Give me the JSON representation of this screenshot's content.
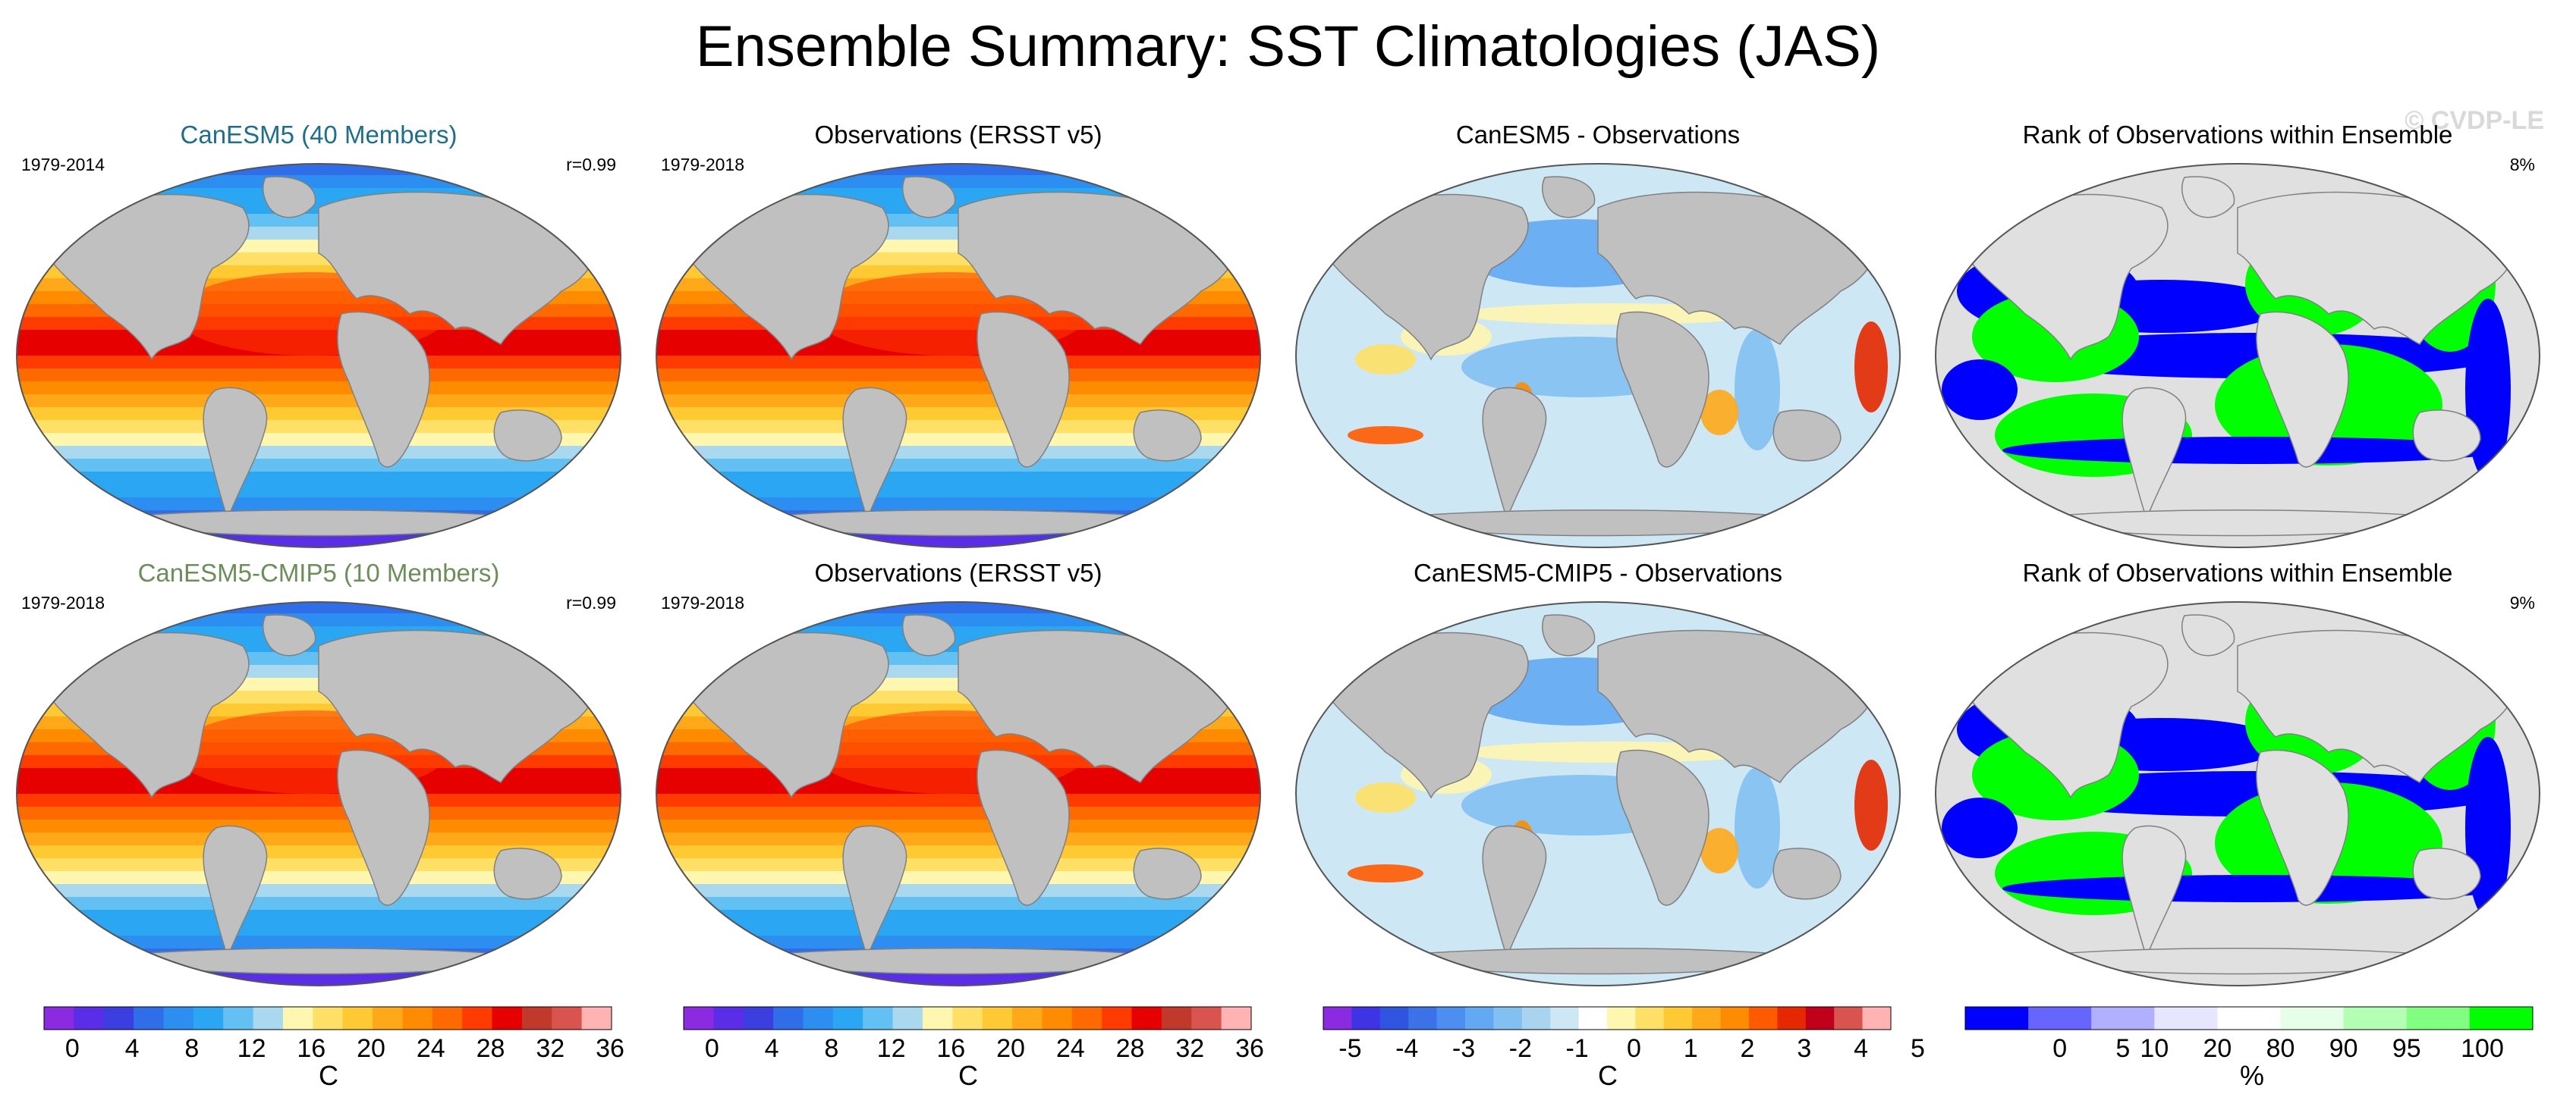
{
  "title": "Ensemble Summary: SST Climatologies (JAS)",
  "watermark": "© CVDP-LE",
  "colors": {
    "land": "#c0c0c0",
    "land_light": "#e0e0e0",
    "ocean_edge": "#555555",
    "model_title_1": "#1f6e8c",
    "model_title_2": "#6b8e5a"
  },
  "panels": [
    {
      "id": "p11",
      "title": "CanESM5 (40 Members)",
      "title_color": "#1f6e8c",
      "left": "1979-2014",
      "right": "r=0.99",
      "kind": "sst"
    },
    {
      "id": "p12",
      "title": "Observations (ERSST v5)",
      "title_color": "#000000",
      "left": "1979-2018",
      "right": "",
      "kind": "sst"
    },
    {
      "id": "p13",
      "title": "CanESM5 - Observations",
      "title_color": "#000000",
      "left": "",
      "right": "",
      "kind": "diff"
    },
    {
      "id": "p14",
      "title": "Rank of Observations within Ensemble",
      "title_color": "#000000",
      "left": "",
      "right": "8%",
      "kind": "rank"
    },
    {
      "id": "p21",
      "title": "CanESM5-CMIP5 (10 Members)",
      "title_color": "#6b8e5a",
      "left": "1979-2018",
      "right": "r=0.99",
      "kind": "sst"
    },
    {
      "id": "p22",
      "title": "Observations (ERSST v5)",
      "title_color": "#000000",
      "left": "1979-2018",
      "right": "",
      "kind": "sst"
    },
    {
      "id": "p23",
      "title": "CanESM5-CMIP5 - Observations",
      "title_color": "#000000",
      "left": "",
      "right": "",
      "kind": "diff"
    },
    {
      "id": "p24",
      "title": "Rank of Observations within Ensemble",
      "title_color": "#000000",
      "left": "",
      "right": "9%",
      "kind": "rank"
    }
  ],
  "colorbars": [
    {
      "id": "cb1",
      "unit": "C",
      "colors": [
        "#8a2be2",
        "#5a2ee6",
        "#3b3fe0",
        "#2f6ee8",
        "#2b8ef0",
        "#2aa6f2",
        "#62c1f2",
        "#a9d8ef",
        "#fff6b0",
        "#ffe066",
        "#ffc933",
        "#ffa81a",
        "#ff8c00",
        "#ff6a00",
        "#ff3b00",
        "#e60000",
        "#c0392b",
        "#d9534f",
        "#ffb3b3"
      ],
      "labels": [
        "0",
        "4",
        "8",
        "12",
        "16",
        "20",
        "24",
        "28",
        "32",
        "36"
      ]
    },
    {
      "id": "cb2",
      "unit": "C",
      "colors": [
        "#8a2be2",
        "#5a2ee6",
        "#3b3fe0",
        "#2f6ee8",
        "#2b8ef0",
        "#2aa6f2",
        "#62c1f2",
        "#a9d8ef",
        "#fff6b0",
        "#ffe066",
        "#ffc933",
        "#ffa81a",
        "#ff8c00",
        "#ff6a00",
        "#ff3b00",
        "#e60000",
        "#c0392b",
        "#d9534f",
        "#ffb3b3"
      ],
      "labels": [
        "0",
        "4",
        "8",
        "12",
        "16",
        "20",
        "24",
        "28",
        "32",
        "36"
      ]
    },
    {
      "id": "cb3",
      "unit": "C",
      "colors": [
        "#8a2be2",
        "#3f33e6",
        "#2f55e0",
        "#3b72e8",
        "#4d8ff0",
        "#62a8f2",
        "#83c0f2",
        "#a9d4f0",
        "#cde7f5",
        "#ffffff",
        "#fff6b0",
        "#ffe066",
        "#ffc933",
        "#ffa81a",
        "#ff8c00",
        "#ff5a00",
        "#e62800",
        "#c0001a",
        "#d9534f",
        "#ffb3b3"
      ],
      "labels": [
        "-5",
        "-4",
        "-3",
        "-2",
        "-1",
        "0",
        "1",
        "2",
        "3",
        "4",
        "5"
      ]
    },
    {
      "id": "cb4",
      "unit": "%",
      "colors": [
        "#0000ff",
        "#6666ff",
        "#b0b0ff",
        "#e6e6ff",
        "#ffffff",
        "#e6ffe6",
        "#b3ffb3",
        "#80ff80",
        "#00ff00"
      ],
      "labels": [
        "0",
        "5",
        "10",
        "20",
        "80",
        "90",
        "95",
        "100"
      ]
    }
  ]
}
